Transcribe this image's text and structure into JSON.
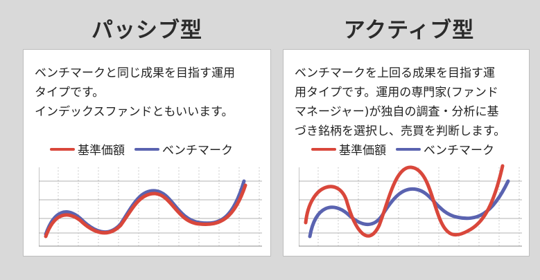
{
  "colors": {
    "background": "#d9d9d9",
    "card": "#ffffff",
    "fund": "#d9473b",
    "benchmark": "#5a63b0",
    "grid": "#888888"
  },
  "passive": {
    "title": "パッシブ型",
    "description": [
      "ベンチマークと同じ成果を目指す運用",
      "タイプです。",
      "インデックスファンドともいいます。"
    ],
    "legend": {
      "fund": "基準価額",
      "benchmark": "ベンチマーク"
    }
  },
  "active": {
    "title": "アクティブ型",
    "description": [
      "ベンチマークを上回る成果を目指す運",
      "用タイプです。運用の専門家(ファンド",
      "マネージャー)が独自の調査・分析に基",
      "づき銘柄を選択し、売買を判断します。"
    ],
    "legend": {
      "fund": "基準価額",
      "benchmark": "ベンチマーク"
    }
  }
}
